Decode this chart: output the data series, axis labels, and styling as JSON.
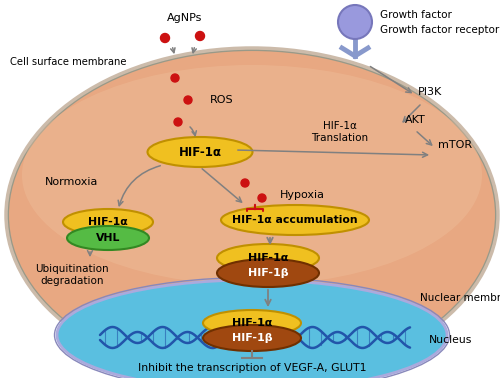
{
  "bg_color": "#ffffff",
  "cell_bg": "#e8a882",
  "cell_bg_grad": "#f5cdb0",
  "nucleus_bg": "#5abfe0",
  "nucleus_border": "#9999cc",
  "cell_border": "#999988",
  "arrow_color": "#808080",
  "red_dot_color": "#cc1111",
  "hif1a_color": "#f0c020",
  "hif1a_edge": "#c09000",
  "hif1b_color": "#a04810",
  "hif1b_edge": "#703000",
  "vhl_color": "#55bb44",
  "vhl_edge": "#338822",
  "dna_color": "#2255aa",
  "gf_circle_color": "#9999dd",
  "gf_circle_edge": "#7777bb",
  "receptor_color": "#8899cc",
  "pi3k_label": "PI3K",
  "akt_label": "AKT",
  "mtor_label": "mTOR",
  "growth_factor_label": "Growth factor",
  "growth_factor_receptor_label": "Growth factor receptor",
  "agnps_label": "AgNPs",
  "ros_label": "ROS",
  "cell_surface_label": "Cell surface membrane",
  "normoxia_label": "Normoxia",
  "hypoxia_label": "Hypoxia",
  "hif1a_accumulation_label": "HIF-1α accumulation",
  "ubiquitination_label": "Ubiquitination\ndegradation",
  "hif1a_translation_label": "HIF-1α\nTranslation",
  "nuclear_membrane_label": "Nuclear membrane",
  "nucleus_label": "Nucleus",
  "inhibit_label": "Inhibit the transcription of VEGF-A, GLUT1",
  "hif1a_text": "HIF-1α",
  "hif1b_text": "HIF-1β",
  "vhl_text": "VHL"
}
